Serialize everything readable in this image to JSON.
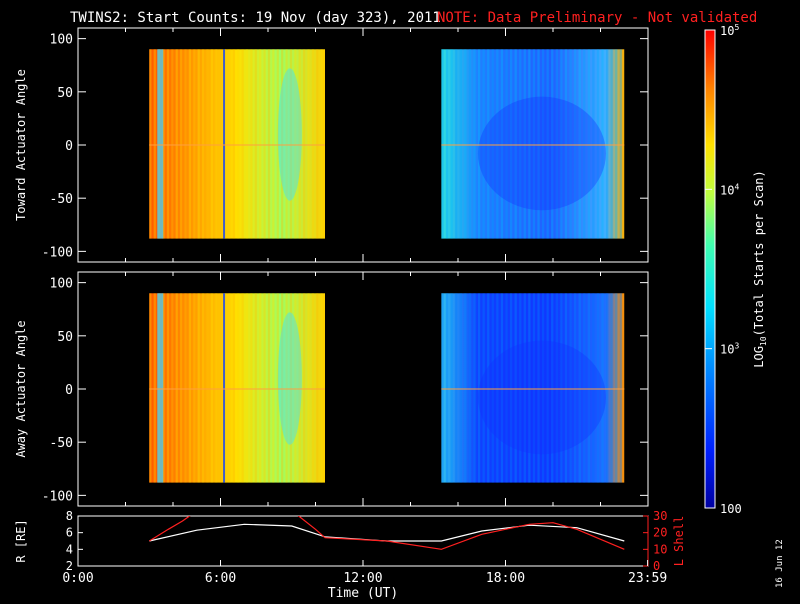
{
  "title": "TWINS2: Start Counts: 19 Nov (day 323), 2011",
  "note": "NOTE: Data Preliminary - Not validated",
  "date_stamp": "16 Jun 12",
  "colors": {
    "background": "#000000",
    "axes": "#ffffff",
    "note": "#ff2020",
    "lshell": "#ff2020",
    "radius": "#ffffff"
  },
  "chart_data": [
    {
      "type": "heatmap",
      "ylabel": "Toward Actuator Angle",
      "ylim": [
        -110,
        110
      ],
      "yticks": [
        100,
        50,
        0,
        -50,
        -100
      ],
      "xlim": [
        0,
        24
      ],
      "colormap": "rainbow",
      "blocks": [
        {
          "x_start": 3.0,
          "x_end": 10.4,
          "y_start": -88,
          "y_end": 90,
          "log_level": 4.35
        },
        {
          "x_start": 15.3,
          "x_end": 23.0,
          "y_start": -88,
          "y_end": 90,
          "log_level": 3.05
        }
      ]
    },
    {
      "type": "heatmap",
      "ylabel": "Away Actuator Angle",
      "ylim": [
        -110,
        110
      ],
      "yticks": [
        100,
        50,
        0,
        -50,
        -100
      ],
      "xlim": [
        0,
        24
      ],
      "colormap": "rainbow",
      "blocks": [
        {
          "x_start": 3.0,
          "x_end": 10.4,
          "y_start": -88,
          "y_end": 90,
          "log_level": 4.35
        },
        {
          "x_start": 15.3,
          "x_end": 23.0,
          "y_start": -88,
          "y_end": 90,
          "log_level": 2.85
        }
      ]
    },
    {
      "type": "line",
      "xlabel": "Time (UT)",
      "xlim": [
        0,
        24
      ],
      "xticks": [
        0,
        6,
        12,
        18,
        23.983
      ],
      "xticklabels": [
        "0:00",
        "6:00",
        "12:00",
        "18:00",
        "23:59"
      ],
      "left_axis": {
        "label": "R [RE]",
        "ylim": [
          2,
          8
        ],
        "yticks": [
          2,
          4,
          6,
          8
        ]
      },
      "right_axis": {
        "label": "L Shell",
        "ylim": [
          0,
          30
        ],
        "yticks": [
          0,
          10,
          20,
          30
        ]
      },
      "series": [
        {
          "axis": "left",
          "x": [
            3.0,
            5.0,
            7.0,
            9.0,
            10.4,
            13.0,
            15.3,
            17.0,
            19.0,
            21.0,
            23.0
          ],
          "values": [
            5.0,
            6.3,
            7.0,
            6.8,
            5.5,
            5.0,
            5.0,
            6.2,
            6.9,
            6.6,
            5.0
          ]
        },
        {
          "axis": "right",
          "x": [
            3.0,
            3.8,
            4.4,
            4.8,
            9.2,
            10.0,
            10.4,
            13.0,
            15.3,
            17.0,
            19.0,
            20.0,
            21.0,
            23.0
          ],
          "values": [
            15,
            22,
            27,
            31,
            31,
            22,
            17,
            15,
            10,
            19,
            25,
            26,
            22,
            10
          ]
        }
      ]
    }
  ],
  "colorbar": {
    "label": "LOG10(Total Starts per Scan)",
    "label_main": "LOG",
    "label_sub": "10",
    "label_rest": "(Total Starts per Scan)",
    "range_log": [
      2,
      5
    ],
    "ticks": [
      {
        "log": 5,
        "label": "10",
        "exp": "5"
      },
      {
        "log": 4,
        "label": "10",
        "exp": "4"
      },
      {
        "log": 3,
        "label": "10",
        "exp": "3"
      },
      {
        "log": 2,
        "label": "100",
        "exp": ""
      }
    ]
  }
}
